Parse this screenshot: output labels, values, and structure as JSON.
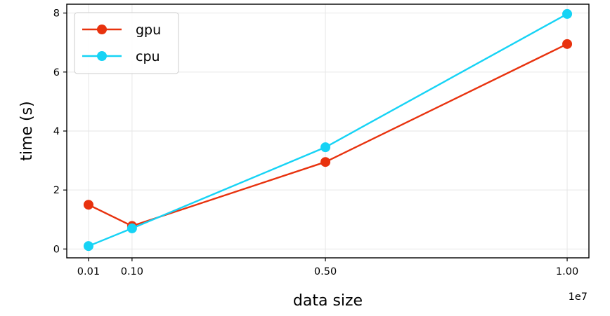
{
  "chart_data": {
    "type": "line",
    "xlabel": "data size",
    "ylabel": "time (s)",
    "x_scale_label": "1e7",
    "x_tick_labels": [
      "0.01",
      "0.10",
      "0.50",
      "1.00"
    ],
    "x_ticks": [
      0.01,
      0.1,
      0.5,
      1.0
    ],
    "y_ticks": [
      0,
      2,
      4,
      6,
      8
    ],
    "xlim": [
      -0.035,
      1.045
    ],
    "ylim": [
      -0.3,
      8.3
    ],
    "grid": true,
    "legend_position": "upper left",
    "series": [
      {
        "name": "gpu",
        "color": "#e8320e",
        "x": [
          0.01,
          0.1,
          0.5,
          1.0
        ],
        "y": [
          1.5,
          0.78,
          2.95,
          6.95
        ]
      },
      {
        "name": "cpu",
        "color": "#16d3f5",
        "x": [
          0.01,
          0.1,
          0.5,
          1.0
        ],
        "y": [
          0.1,
          0.7,
          3.45,
          7.97
        ]
      }
    ]
  }
}
